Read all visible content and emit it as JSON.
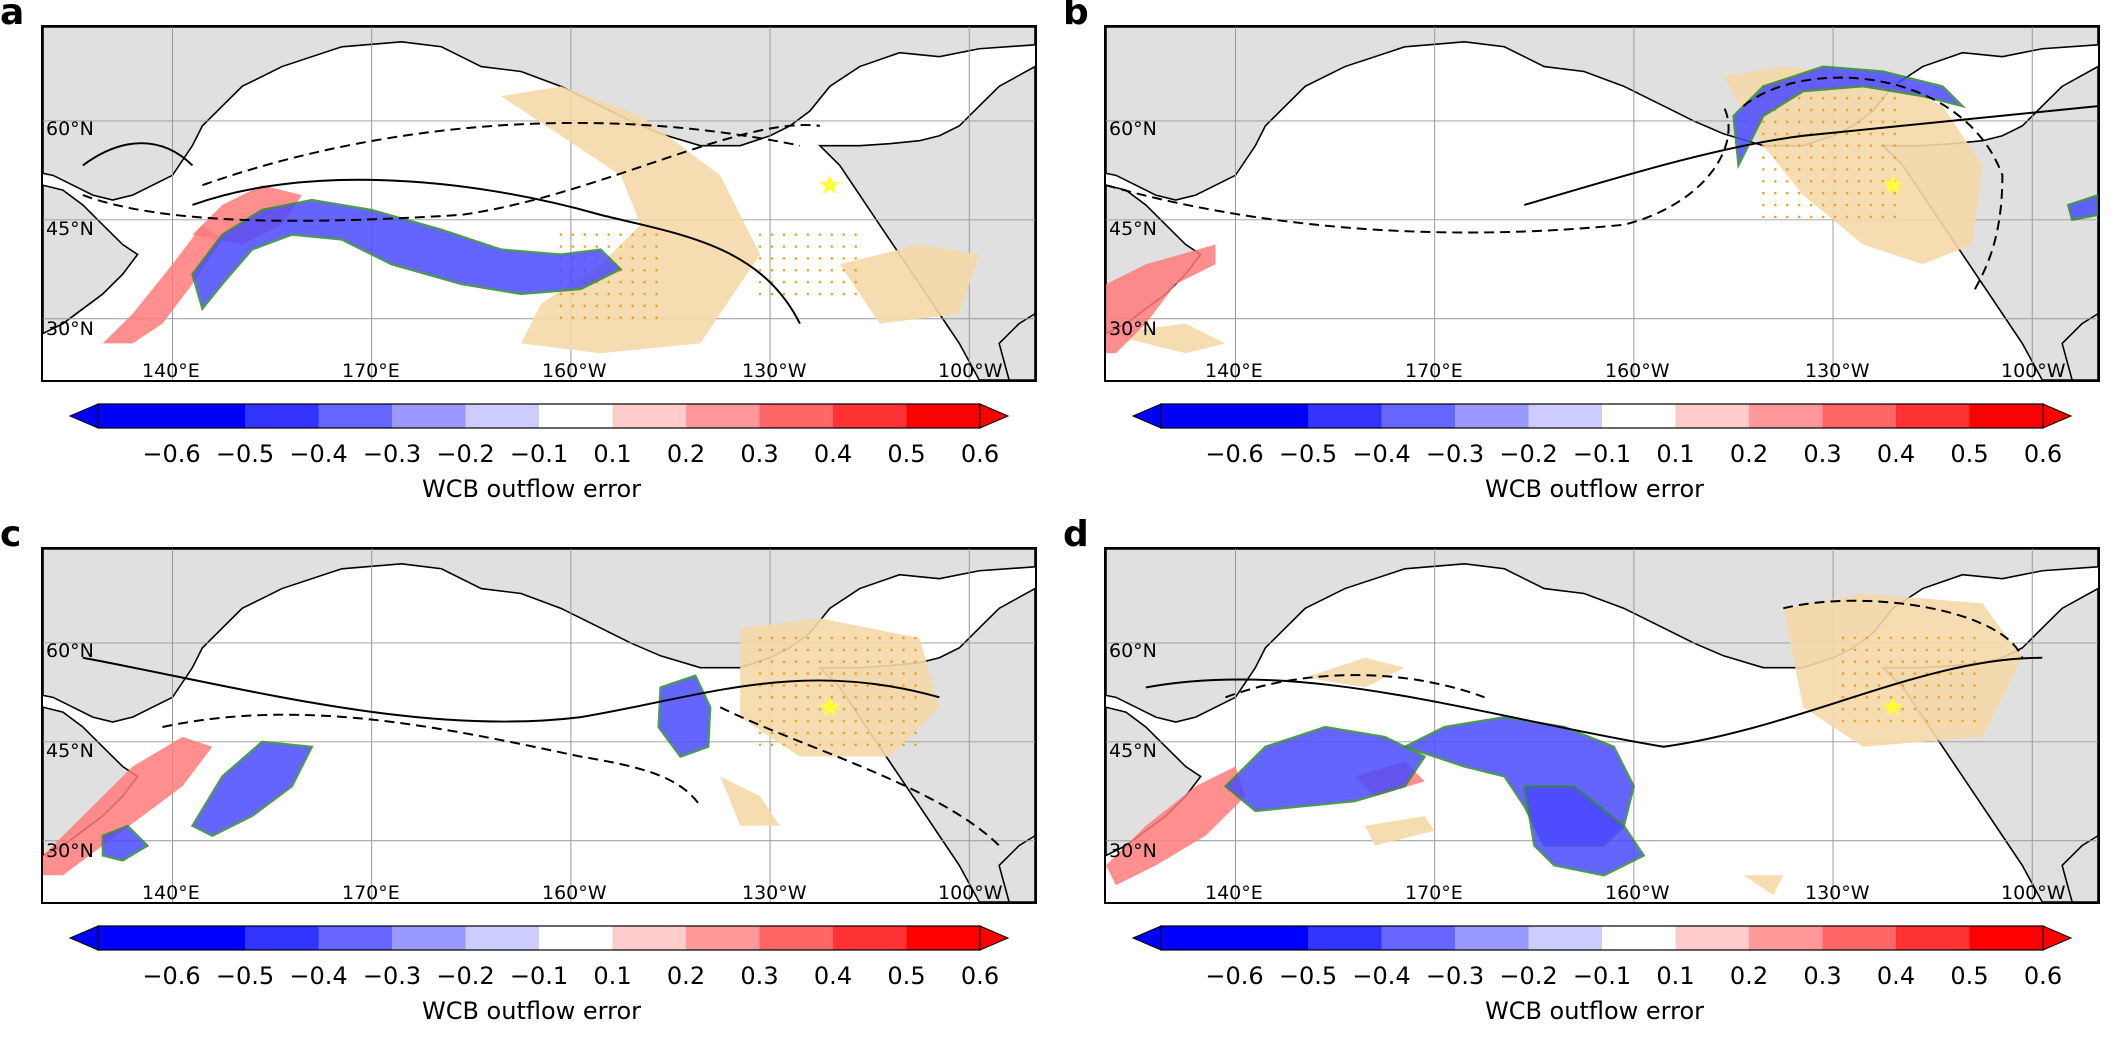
{
  "colorbar": {
    "label": "WCB outflow error",
    "ticks": [
      "−0.6",
      "−0.5",
      "−0.4",
      "−0.3",
      "−0.2",
      "−0.1",
      "0.1",
      "0.2",
      "0.3",
      "0.4",
      "0.5",
      "0.6"
    ],
    "colors": [
      "#0000ff",
      "#3333ff",
      "#6666ff",
      "#9999ff",
      "#ccccff",
      "#ffffff",
      "#ffcccc",
      "#ff9999",
      "#ff6666",
      "#ff3333",
      "#ff0000"
    ],
    "min": -0.6,
    "max": 0.6
  },
  "map": {
    "lat_labels": [
      "60°N",
      "45°N",
      "30°N"
    ],
    "lon_labels": [
      "140°E",
      "170°E",
      "160°W",
      "130°W",
      "100°W"
    ],
    "land_color": "#e0e0e0",
    "ocean_color": "#ffffff",
    "tan_color": "#f5d9a8",
    "outline_color": "#2e8b2e",
    "star_color": "#ffff33",
    "dot_color": "#f0a020"
  },
  "panels": [
    {
      "letter": "a"
    },
    {
      "letter": "b"
    },
    {
      "letter": "c"
    },
    {
      "letter": "d"
    }
  ]
}
